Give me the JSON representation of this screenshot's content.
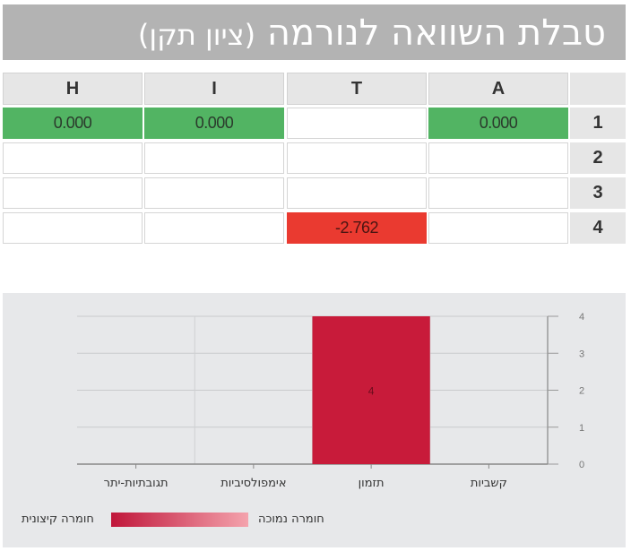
{
  "title": {
    "main": "טבלת השוואה לנורמה",
    "sub": "(ציון תקן)"
  },
  "table": {
    "columns": [
      "A",
      "T",
      "I",
      "H"
    ],
    "rows": [
      {
        "label": "1",
        "cells": [
          "0.000",
          "",
          "0.000",
          "0.000"
        ]
      },
      {
        "label": "2",
        "cells": [
          "",
          "",
          "",
          ""
        ]
      },
      {
        "label": "3",
        "cells": [
          "",
          "",
          "",
          ""
        ]
      },
      {
        "label": "4",
        "cells": [
          "",
          "-2.762",
          "",
          ""
        ]
      }
    ]
  },
  "colors": {
    "green": "#52b463",
    "red": "#ea3a30",
    "bar": "#c81b3a"
  },
  "legend": {
    "left_label": "חומרה קיצונית",
    "right_label": "חומרה נמוכה"
  },
  "chart_data": {
    "type": "bar",
    "categories": [
      "קשביות",
      "תזמון",
      "אימפולסיביות",
      "תגובתיות-יתר"
    ],
    "values": [
      0,
      4,
      0,
      0
    ],
    "data_labels": [
      "",
      "4",
      "",
      ""
    ],
    "ylim": [
      0,
      4
    ],
    "yticks": [
      "0",
      "1",
      "2",
      "3",
      "4"
    ],
    "y_axis_side": "right",
    "grid": true,
    "legend_placement": "bottom-left"
  }
}
